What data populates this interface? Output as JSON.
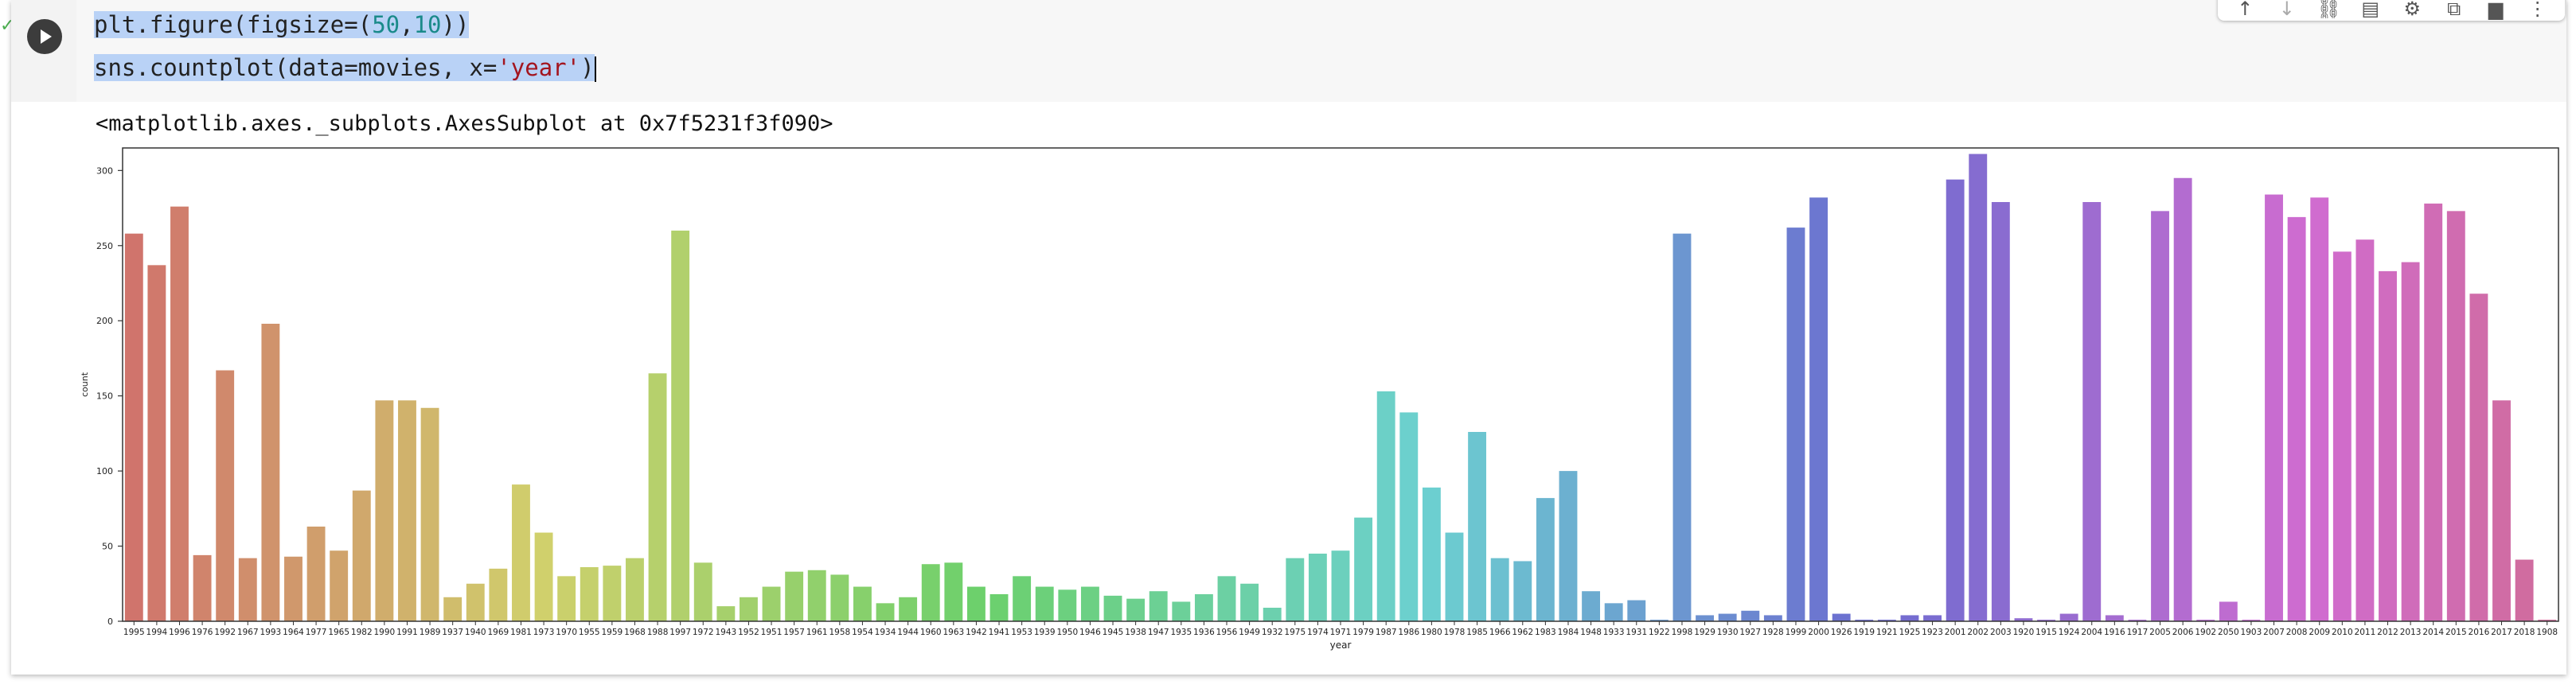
{
  "cell": {
    "code": {
      "line1": "plt.figure(figsize=(50,10))",
      "line2_prefix": "sns.countplot(data=movies, x=",
      "line2_string": "'year'",
      "line2_suffix": ")",
      "line1_parts": [
        "plt.figure(figsize=(",
        "50",
        ",",
        "10",
        "))"
      ]
    },
    "output_repr": "<matplotlib.axes._subplots.AxesSubplot at 0x7f5231f3f090>"
  },
  "toolbar": {
    "icons": [
      "arrow-up-icon",
      "arrow-down-icon",
      "link-icon",
      "comment-icon",
      "gear-icon",
      "mirror-cell-icon",
      "delete-icon",
      "more-icon"
    ]
  },
  "chart_data": {
    "type": "bar",
    "xlabel": "year",
    "ylabel": "count",
    "ylim": [
      0,
      315
    ],
    "yticks": [
      0,
      50,
      100,
      150,
      200,
      250,
      300
    ],
    "categories": [
      "1995",
      "1994",
      "1996",
      "1976",
      "1992",
      "1967",
      "1993",
      "1964",
      "1977",
      "1965",
      "1982",
      "1990",
      "1991",
      "1989",
      "1937",
      "1940",
      "1969",
      "1981",
      "1973",
      "1970",
      "1955",
      "1959",
      "1968",
      "1988",
      "1997",
      "1972",
      "1943",
      "1952",
      "1951",
      "1957",
      "1961",
      "1958",
      "1954",
      "1934",
      "1944",
      "1960",
      "1963",
      "1942",
      "1941",
      "1953",
      "1939",
      "1950",
      "1946",
      "1945",
      "1938",
      "1947",
      "1935",
      "1936",
      "1956",
      "1949",
      "1932",
      "1975",
      "1974",
      "1971",
      "1979",
      "1987",
      "1986",
      "1980",
      "1978",
      "1985",
      "1966",
      "1962",
      "1983",
      "1984",
      "1948",
      "1933",
      "1931",
      "1922",
      "1998",
      "1929",
      "1930",
      "1927",
      "1928",
      "1999",
      "2000",
      "1926",
      "1919",
      "1921",
      "1925",
      "1923",
      "2001",
      "2002",
      "2003",
      "1920",
      "1915",
      "1924",
      "2004",
      "1916",
      "1917",
      "2005",
      "2006",
      "1902",
      "2050",
      "1903",
      "2007",
      "2008",
      "2009",
      "2010",
      "2011",
      "2012",
      "2013",
      "2014",
      "2015",
      "2016",
      "2017",
      "2018",
      "1908"
    ],
    "values": [
      258,
      237,
      276,
      44,
      167,
      42,
      198,
      43,
      63,
      47,
      87,
      147,
      147,
      142,
      16,
      25,
      35,
      91,
      59,
      30,
      36,
      37,
      42,
      165,
      260,
      39,
      10,
      16,
      23,
      33,
      34,
      31,
      23,
      12,
      16,
      38,
      39,
      23,
      18,
      30,
      23,
      21,
      23,
      17,
      15,
      20,
      13,
      18,
      30,
      25,
      9,
      42,
      45,
      47,
      69,
      153,
      139,
      89,
      59,
      126,
      42,
      40,
      82,
      100,
      20,
      12,
      14,
      1,
      258,
      4,
      5,
      7,
      4,
      262,
      282,
      5,
      1,
      1,
      4,
      4,
      294,
      311,
      279,
      2,
      1,
      5,
      279,
      4,
      1,
      273,
      295,
      1,
      13,
      1,
      284,
      269,
      282,
      246,
      254,
      233,
      239,
      278,
      273,
      218,
      147,
      41,
      1
    ]
  }
}
